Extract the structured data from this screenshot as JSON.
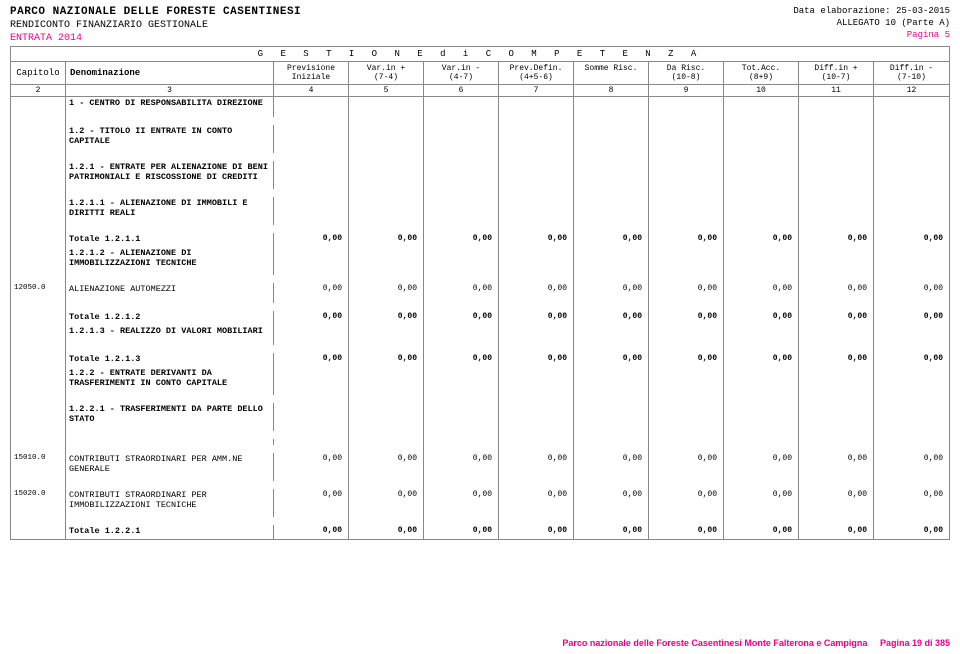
{
  "header": {
    "title": "PARCO NAZIONALE DELLE FORESTE CASENTINESI",
    "subtitle": "RENDICONTO FINANZIARIO GESTIONALE",
    "entrata": "ENTRATA 2014",
    "data_elab": "Data elaborazione: 25-03-2015",
    "allegato": "ALLEGATO 10 (Parte A)",
    "pagina": "Pagina 5"
  },
  "section_title": "G  E  S  T  I  O  N  E    d i    C  O  M  P  E  T  E  N  Z  A",
  "columns": {
    "capitolo": "Capitolo",
    "denominazione": "Denominazione",
    "c4": {
      "l1": "Previsione",
      "l2": "Iniziale"
    },
    "c5": {
      "l1": "Var.in +",
      "l2": "(7-4)"
    },
    "c6": {
      "l1": "Var.in -",
      "l2": "(4-7)"
    },
    "c7": {
      "l1": "Prev.Defin.",
      "l2": "(4+5-6)"
    },
    "c8": {
      "l1": "Somme Risc.",
      "l2": ""
    },
    "c9": {
      "l1": "Da Risc.",
      "l2": "(10-8)"
    },
    "c10": {
      "l1": "Tot.Acc.",
      "l2": "(8+9)"
    },
    "c11": {
      "l1": "Diff.in +",
      "l2": "(10-7)"
    },
    "c12": {
      "l1": "Diff.in -",
      "l2": "(7-10)"
    }
  },
  "num_row": {
    "n2": "2",
    "n3": "3",
    "n4": "4",
    "n5": "5",
    "n6": "6",
    "n7": "7",
    "n8": "8",
    "n9": "9",
    "n10": "10",
    "n11": "11",
    "n12": "12"
  },
  "rows": [
    {
      "cap": "",
      "den": "1 - CENTRO DI RESPONSABILITA DIREZIONE",
      "bold": true,
      "vals": [
        "",
        "",
        "",
        "",
        "",
        "",
        "",
        "",
        ""
      ]
    },
    {
      "spacer": true
    },
    {
      "cap": "",
      "den": "1.2 - TITOLO II ENTRATE IN CONTO CAPITALE",
      "bold": true,
      "vals": [
        "",
        "",
        "",
        "",
        "",
        "",
        "",
        "",
        ""
      ]
    },
    {
      "spacer": true
    },
    {
      "cap": "",
      "den": "1.2.1 - ENTRATE PER ALIENAZIONE DI BENI PATRIMONIALI E RISCOSSIONE DI CREDITI",
      "bold": true,
      "vals": [
        "",
        "",
        "",
        "",
        "",
        "",
        "",
        "",
        ""
      ]
    },
    {
      "spacer": true
    },
    {
      "cap": "",
      "den": "1.2.1.1 - ALIENAZIONE DI IMMOBILI E DIRITTI REALI",
      "bold": true,
      "vals": [
        "",
        "",
        "",
        "",
        "",
        "",
        "",
        "",
        ""
      ]
    },
    {
      "spacer": true
    },
    {
      "cap": "",
      "den": "Totale 1.2.1.1",
      "bold": true,
      "vals": [
        "0,00",
        "0,00",
        "0,00",
        "0,00",
        "0,00",
        "0,00",
        "0,00",
        "0,00",
        "0,00"
      ]
    },
    {
      "cap": "",
      "den": "1.2.1.2 - ALIENAZIONE DI IMMOBILIZZAZIONI TECNICHE",
      "bold": true,
      "vals": [
        "",
        "",
        "",
        "",
        "",
        "",
        "",
        "",
        ""
      ]
    },
    {
      "spacer": true
    },
    {
      "cap": "12050.0",
      "den": "ALIENAZIONE AUTOMEZZI",
      "bold": false,
      "vals": [
        "0,00",
        "0,00",
        "0,00",
        "0,00",
        "0,00",
        "0,00",
        "0,00",
        "0,00",
        "0,00"
      ]
    },
    {
      "spacer": true
    },
    {
      "cap": "",
      "den": "Totale 1.2.1.2",
      "bold": true,
      "vals": [
        "0,00",
        "0,00",
        "0,00",
        "0,00",
        "0,00",
        "0,00",
        "0,00",
        "0,00",
        "0,00"
      ]
    },
    {
      "cap": "",
      "den": "1.2.1.3 - REALIZZO DI VALORI MOBILIARI",
      "bold": true,
      "vals": [
        "",
        "",
        "",
        "",
        "",
        "",
        "",
        "",
        ""
      ]
    },
    {
      "spacer": true
    },
    {
      "cap": "",
      "den": "Totale 1.2.1.3",
      "bold": true,
      "vals": [
        "0,00",
        "0,00",
        "0,00",
        "0,00",
        "0,00",
        "0,00",
        "0,00",
        "0,00",
        "0,00"
      ]
    },
    {
      "cap": "",
      "den": "1.2.2 - ENTRATE DERIVANTI DA TRASFERIMENTI IN CONTO CAPITALE",
      "bold": true,
      "vals": [
        "",
        "",
        "",
        "",
        "",
        "",
        "",
        "",
        ""
      ]
    },
    {
      "spacer": true
    },
    {
      "cap": "",
      "den": "1.2.2.1 - TRASFERIMENTI DA PARTE DELLO STATO",
      "bold": true,
      "vals": [
        "",
        "",
        "",
        "",
        "",
        "",
        "",
        "",
        ""
      ]
    },
    {
      "spacer": true
    },
    {
      "spacer": true
    },
    {
      "cap": "15010.0",
      "den": "CONTRIBUTI STRAORDINARI PER AMM.NE GENERALE",
      "bold": false,
      "vals": [
        "0,00",
        "0,00",
        "0,00",
        "0,00",
        "0,00",
        "0,00",
        "0,00",
        "0,00",
        "0,00"
      ]
    },
    {
      "spacer": true
    },
    {
      "cap": "15020.0",
      "den": "CONTRIBUTI STRAORDINARI PER IMMOBILIZZAZIONI TECNICHE",
      "bold": false,
      "vals": [
        "0,00",
        "0,00",
        "0,00",
        "0,00",
        "0,00",
        "0,00",
        "0,00",
        "0,00",
        "0,00"
      ]
    },
    {
      "spacer": true
    },
    {
      "cap": "",
      "den": "Totale 1.2.2.1",
      "bold": true,
      "vals": [
        "0,00",
        "0,00",
        "0,00",
        "0,00",
        "0,00",
        "0,00",
        "0,00",
        "0,00",
        "0,00"
      ]
    }
  ],
  "footer": {
    "text": "Parco nazionale delle Foreste Casentinesi Monte Falterona e Campigna",
    "page": "Pagina 19 di 385"
  }
}
